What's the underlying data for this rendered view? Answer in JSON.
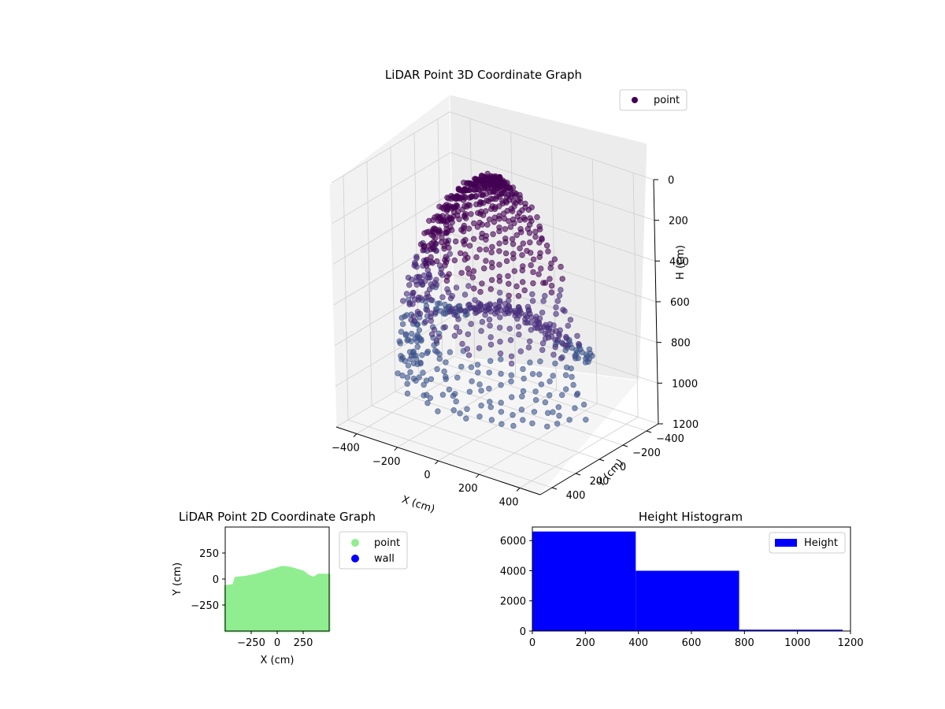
{
  "chart_data": [
    {
      "type": "scatter3d",
      "title": "LiDAR Point 3D Coordinate Graph",
      "xlabel": "X (cm)",
      "ylabel": "Y (cm)",
      "zlabel": "H (cm)",
      "xlim": [
        -500,
        500
      ],
      "ylim": [
        -500,
        500
      ],
      "zlim": [
        0,
        1200
      ],
      "z_inverted": true,
      "xticks": [
        -400,
        -200,
        0,
        200,
        400
      ],
      "yticks": [
        -400,
        -200,
        0,
        200,
        400
      ],
      "zticks": [
        0,
        200,
        400,
        600,
        800,
        1000,
        1200
      ],
      "grid": true,
      "legend": {
        "placement": "top-right",
        "entries": [
          "point"
        ]
      },
      "series": [
        {
          "name": "point",
          "color": "#440154",
          "shape": "dome-of-vertical-scan-lines",
          "dome_radius": 450,
          "dome_top_height": 0,
          "dome_bottom_height": 1000,
          "ridge_height": 750,
          "scan_lines": 30,
          "points_per_line": 28
        }
      ]
    },
    {
      "type": "scatter",
      "title": "LiDAR Point 2D Coordinate Graph",
      "xlabel": "X (cm)",
      "ylabel": "Y (cm)",
      "xlim": [
        -500,
        500
      ],
      "ylim": [
        -500,
        500
      ],
      "xticks": [
        -250,
        0,
        250
      ],
      "yticks": [
        -250,
        0,
        250
      ],
      "legend": {
        "placement": "outside-right",
        "entries": [
          "point",
          "wall"
        ]
      },
      "series": [
        {
          "name": "point",
          "color": "#90ee90",
          "region": "filled area from y=-500 up to upper boundary",
          "upper_boundary": [
            [
              -500,
              -70
            ],
            [
              -420,
              -60
            ],
            [
              -400,
              10
            ],
            [
              -300,
              20
            ],
            [
              -200,
              40
            ],
            [
              -100,
              70
            ],
            [
              0,
              100
            ],
            [
              50,
              115
            ],
            [
              100,
              110
            ],
            [
              150,
              100
            ],
            [
              250,
              70
            ],
            [
              300,
              30
            ],
            [
              350,
              10
            ],
            [
              400,
              40
            ],
            [
              500,
              40
            ]
          ]
        },
        {
          "name": "wall",
          "color": "#0000ff",
          "points": []
        }
      ]
    },
    {
      "type": "histogram",
      "title": "Height Histogram",
      "xlabel": "",
      "ylabel": "",
      "xlim": [
        0,
        1200
      ],
      "ylim": [
        0,
        6900
      ],
      "xticks": [
        0,
        200,
        400,
        600,
        800,
        1000,
        1200
      ],
      "yticks": [
        0,
        2000,
        4000,
        6000
      ],
      "legend": {
        "placement": "top-right",
        "entries": [
          "Height"
        ]
      },
      "series": [
        {
          "name": "Height",
          "color": "#0000ff",
          "bins": [
            {
              "start": 0,
              "end": 390,
              "count": 6600
            },
            {
              "start": 390,
              "end": 780,
              "count": 4000
            },
            {
              "start": 780,
              "end": 1170,
              "count": 90
            }
          ]
        }
      ]
    }
  ]
}
